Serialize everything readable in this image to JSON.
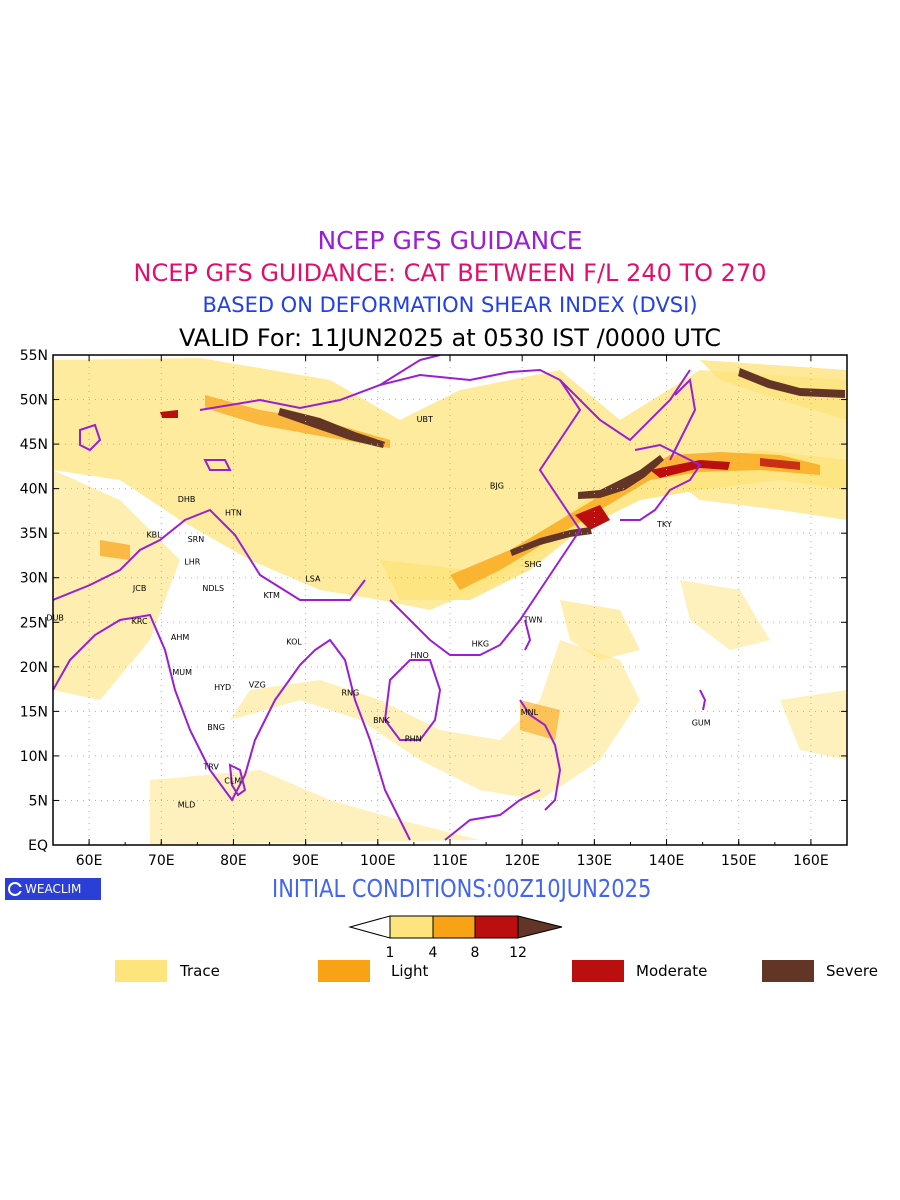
{
  "header": {
    "title": "NCEP GFS GUIDANCE",
    "subtitle": "NCEP GFS GUIDANCE: CAT BETWEEN F/L 240 TO 270",
    "method": "BASED ON DEFORMATION SHEAR INDEX (DVSI)",
    "valid": "VALID For: 11JUN2025 at 0530 IST /0000 UTC"
  },
  "colors": {
    "title": "#9b1fd0",
    "subtitle": "#e0106a",
    "method": "#2140e8",
    "init": "#4466ee",
    "boundary": "#9b1fd0",
    "trace": "#fde47d",
    "light": "#f8a315",
    "moderate": "#bb0f0f",
    "severe": "#623526",
    "logo_bg": "#2b3fd6"
  },
  "axes": {
    "x_ticks": [
      "60E",
      "70E",
      "80E",
      "90E",
      "100E",
      "110E",
      "120E",
      "130E",
      "140E",
      "150E",
      "160E"
    ],
    "y_ticks": [
      "55N",
      "50N",
      "45N",
      "40N",
      "35N",
      "30N",
      "25N",
      "20N",
      "15N",
      "10N",
      "5N",
      "EQ"
    ],
    "lon_range": [
      55,
      165
    ],
    "lat_range": [
      0,
      55
    ],
    "grid": "dotted"
  },
  "cities": [
    {
      "name": "UBT",
      "lon": 106.5,
      "lat": 47.5
    },
    {
      "name": "BJG",
      "lon": 116.5,
      "lat": 40.0
    },
    {
      "name": "DHB",
      "lon": 73.5,
      "lat": 38.5
    },
    {
      "name": "HTN",
      "lon": 80.0,
      "lat": 37.0
    },
    {
      "name": "KBL",
      "lon": 69.0,
      "lat": 34.5
    },
    {
      "name": "SRN",
      "lon": 74.8,
      "lat": 34.0
    },
    {
      "name": "LHR",
      "lon": 74.3,
      "lat": 31.5
    },
    {
      "name": "NDLS",
      "lon": 77.2,
      "lat": 28.5
    },
    {
      "name": "JCB",
      "lon": 67.0,
      "lat": 28.5
    },
    {
      "name": "KTM",
      "lon": 85.3,
      "lat": 27.7
    },
    {
      "name": "LSA",
      "lon": 91.0,
      "lat": 29.6
    },
    {
      "name": "KRC",
      "lon": 67.0,
      "lat": 24.8
    },
    {
      "name": "DUB",
      "lon": 55.3,
      "lat": 25.2
    },
    {
      "name": "AHM",
      "lon": 72.6,
      "lat": 23.0
    },
    {
      "name": "KOL",
      "lon": 88.4,
      "lat": 22.5
    },
    {
      "name": "MUM",
      "lon": 72.9,
      "lat": 19.1
    },
    {
      "name": "HYD",
      "lon": 78.5,
      "lat": 17.4
    },
    {
      "name": "VZG",
      "lon": 83.3,
      "lat": 17.7
    },
    {
      "name": "RNG",
      "lon": 96.2,
      "lat": 16.8
    },
    {
      "name": "BNK",
      "lon": 100.5,
      "lat": 13.7
    },
    {
      "name": "PHN",
      "lon": 104.9,
      "lat": 11.6
    },
    {
      "name": "HNO",
      "lon": 105.8,
      "lat": 21.0
    },
    {
      "name": "HKG",
      "lon": 114.2,
      "lat": 22.3
    },
    {
      "name": "SHG",
      "lon": 121.5,
      "lat": 31.2
    },
    {
      "name": "TWN",
      "lon": 121.5,
      "lat": 25.0
    },
    {
      "name": "TKY",
      "lon": 139.7,
      "lat": 35.7
    },
    {
      "name": "MNL",
      "lon": 121.0,
      "lat": 14.6
    },
    {
      "name": "GUM",
      "lon": 144.8,
      "lat": 13.4
    },
    {
      "name": "BNG",
      "lon": 77.6,
      "lat": 12.9
    },
    {
      "name": "TRV",
      "lon": 76.9,
      "lat": 8.5
    },
    {
      "name": "CLM",
      "lon": 79.9,
      "lat": 6.9
    },
    {
      "name": "MLD",
      "lon": 73.5,
      "lat": 4.2
    }
  ],
  "colorbar": {
    "ticks": [
      "1",
      "4",
      "8",
      "12"
    ]
  },
  "legend": [
    {
      "label": "Trace",
      "color": "#fde47d"
    },
    {
      "label": "Light",
      "color": "#f8a315"
    },
    {
      "label": "Moderate",
      "color": "#bb0f0f"
    },
    {
      "label": "Severe",
      "color": "#623526"
    }
  ],
  "footer": {
    "init": "INITIAL CONDITIONS:00Z10JUN2025",
    "logo": "WEACLIM"
  }
}
